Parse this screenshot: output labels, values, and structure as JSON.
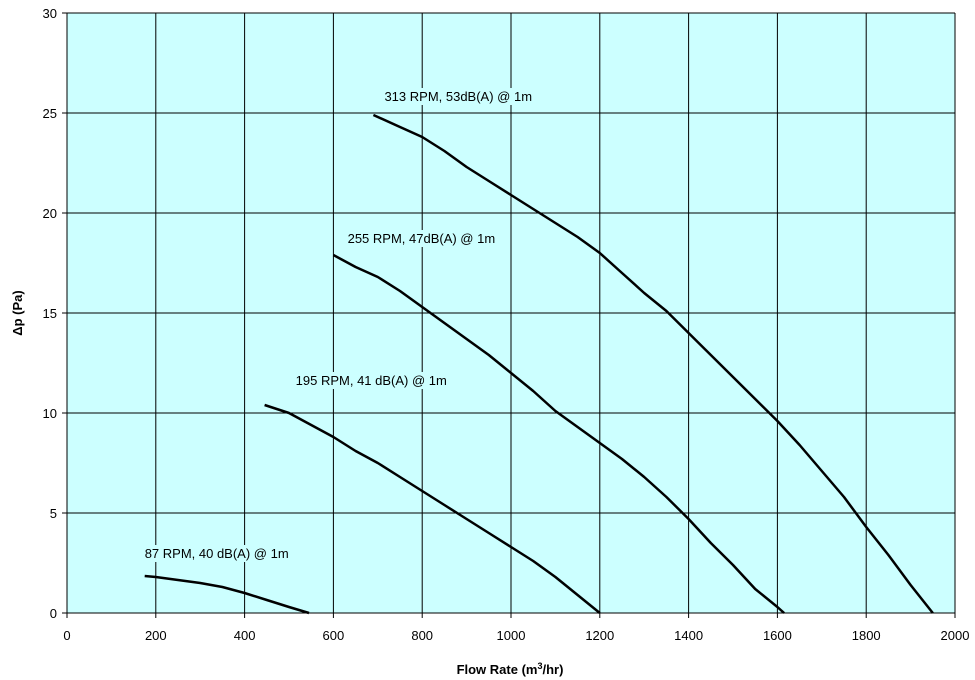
{
  "chart_data": {
    "type": "line",
    "title": "",
    "xlabel": "Flow Rate (m³/hr)",
    "ylabel": "Δp (Pa)",
    "xlim": [
      0,
      2000
    ],
    "ylim": [
      0,
      30
    ],
    "xticks": [
      0,
      200,
      400,
      600,
      800,
      1000,
      1200,
      1400,
      1600,
      1800,
      2000
    ],
    "yticks": [
      0,
      5,
      10,
      15,
      20,
      25,
      30
    ],
    "grid": true,
    "legend": "none",
    "plot_background": "#CCFFFF",
    "line_color": "#000000",
    "series": [
      {
        "name": "87 RPM, 40 dB(A) @ 1m",
        "x": [
          175,
          200,
          250,
          300,
          350,
          400,
          450,
          500,
          545
        ],
        "y": [
          1.85,
          1.8,
          1.65,
          1.5,
          1.3,
          1.0,
          0.65,
          0.3,
          0
        ]
      },
      {
        "name": "195 RPM, 41 dB(A) @ 1m",
        "x": [
          445,
          500,
          550,
          600,
          650,
          700,
          750,
          800,
          850,
          900,
          950,
          1000,
          1050,
          1100,
          1150,
          1200
        ],
        "y": [
          10.4,
          10.0,
          9.4,
          8.8,
          8.1,
          7.5,
          6.8,
          6.1,
          5.4,
          4.7,
          4.0,
          3.3,
          2.6,
          1.8,
          0.9,
          0
        ]
      },
      {
        "name": "255 RPM, 47dB(A) @ 1m",
        "x": [
          600,
          650,
          700,
          750,
          800,
          850,
          900,
          950,
          1000,
          1050,
          1100,
          1150,
          1200,
          1250,
          1300,
          1350,
          1400,
          1450,
          1500,
          1550,
          1600,
          1615
        ],
        "y": [
          17.9,
          17.3,
          16.8,
          16.1,
          15.3,
          14.5,
          13.7,
          12.9,
          12.0,
          11.1,
          10.1,
          9.3,
          8.5,
          7.7,
          6.8,
          5.8,
          4.7,
          3.5,
          2.4,
          1.2,
          0.3,
          0
        ]
      },
      {
        "name": "313 RPM, 53dB(A) @ 1m",
        "x": [
          690,
          750,
          800,
          850,
          900,
          950,
          1000,
          1050,
          1100,
          1150,
          1200,
          1250,
          1300,
          1350,
          1400,
          1450,
          1500,
          1550,
          1600,
          1650,
          1700,
          1750,
          1800,
          1850,
          1900,
          1950
        ],
        "y": [
          24.9,
          24.3,
          23.8,
          23.1,
          22.3,
          21.6,
          20.9,
          20.2,
          19.5,
          18.8,
          18.0,
          17.0,
          16.0,
          15.1,
          14.0,
          12.9,
          11.8,
          10.7,
          9.6,
          8.4,
          7.1,
          5.8,
          4.3,
          2.9,
          1.4,
          0
        ]
      }
    ],
    "annotations": [
      {
        "text": "313 RPM, 53dB(A) @ 1m",
        "x": 715,
        "y": 25.6
      },
      {
        "text": "255 RPM, 47dB(A) @ 1m",
        "x": 632,
        "y": 18.5
      },
      {
        "text": "195 RPM, 41 dB(A) @ 1m",
        "x": 515,
        "y": 11.4
      },
      {
        "text": "87 RPM, 40 dB(A) @ 1m",
        "x": 175,
        "y": 2.75
      }
    ]
  }
}
